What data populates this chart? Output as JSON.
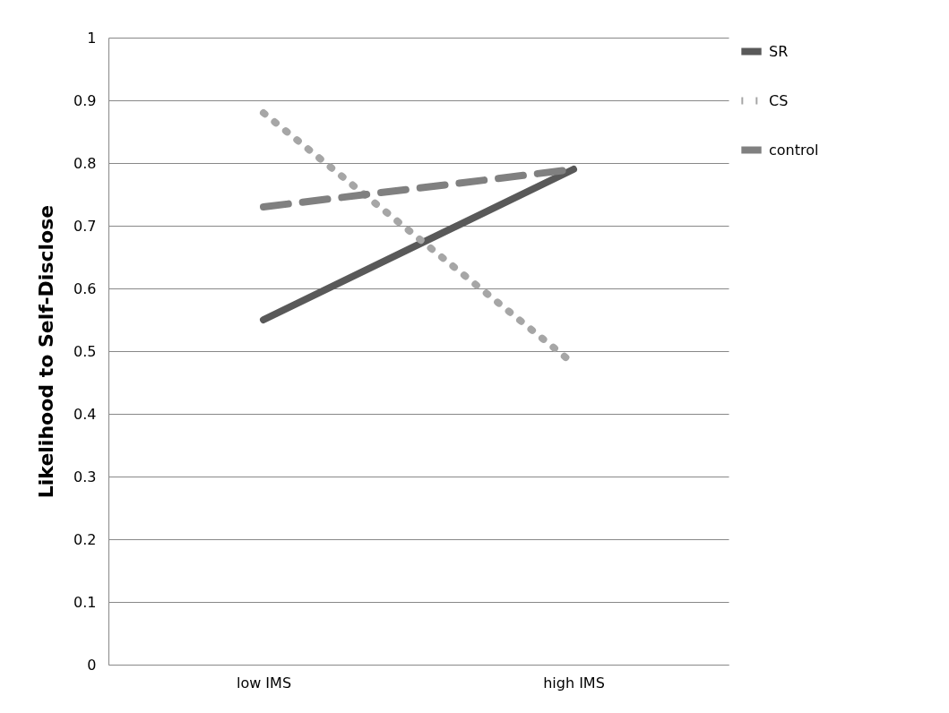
{
  "chart_data": {
    "type": "line",
    "ylabel": "Likelihood to Self-Disclose",
    "categories": [
      "low IMS",
      "high IMS"
    ],
    "series": [
      {
        "name": "SR",
        "color": "#595959",
        "line_style": "solid",
        "values": [
          0.55,
          0.79
        ]
      },
      {
        "name": "CS",
        "color": "#a6a6a6",
        "line_style": "dotted",
        "values": [
          0.88,
          0.48
        ]
      },
      {
        "name": "control",
        "color": "#808080",
        "line_style": "dashed",
        "values": [
          0.73,
          0.79
        ]
      }
    ],
    "ylim": [
      0,
      1
    ],
    "yticks": [
      0,
      0.1,
      0.2,
      0.3,
      0.4,
      0.5,
      0.6,
      0.7,
      0.8,
      0.9,
      1
    ],
    "grid": "y",
    "legend": "right",
    "marker": "none"
  }
}
